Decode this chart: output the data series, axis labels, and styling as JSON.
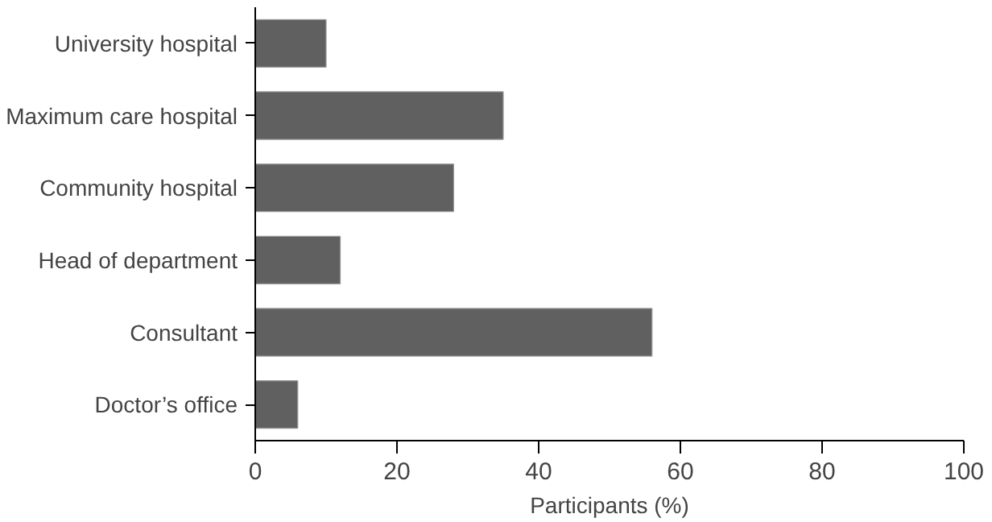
{
  "chart_data": {
    "type": "bar",
    "orientation": "horizontal",
    "xlabel": "Participants (%)",
    "categories": [
      "University hospital",
      "Maximum care hospital",
      "Community hospital",
      "Head of department",
      "Consultant",
      "Doctor’s office"
    ],
    "values": [
      10,
      35,
      28,
      12,
      56,
      6
    ],
    "color": "#606060",
    "xlim": [
      0,
      100
    ],
    "xticks": [
      0,
      20,
      40,
      60,
      80,
      100
    ],
    "grid": false
  }
}
